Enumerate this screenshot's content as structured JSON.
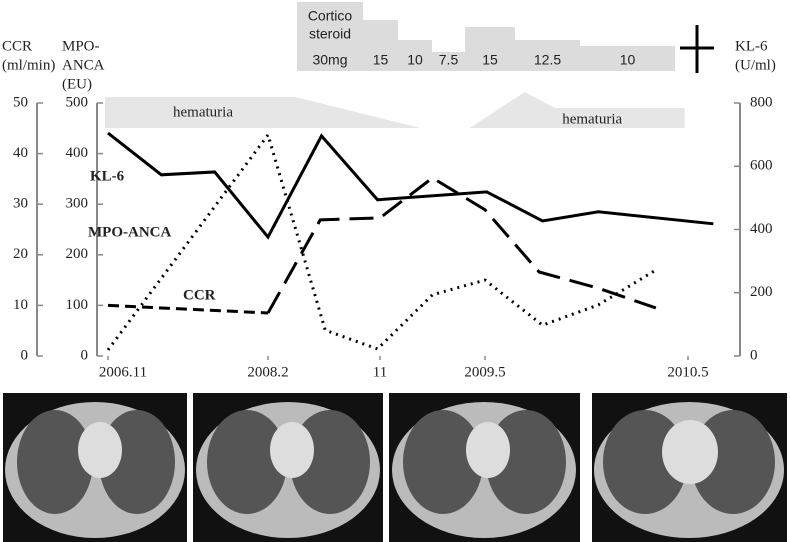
{
  "chart_data": {
    "type": "line",
    "axis_labels": {
      "ccr": [
        "CCR",
        "(ml/min)"
      ],
      "mpo": [
        "MPO-",
        "ANCA",
        "(EU)"
      ],
      "kl6": [
        "KL-6",
        "(U/ml)"
      ]
    },
    "xticks": [
      {
        "value": 0,
        "label": "2006.11"
      },
      {
        "value": 15,
        "label": "2008.2"
      },
      {
        "value": 24,
        "label": "11"
      },
      {
        "value": 30,
        "label": "2009.5"
      },
      {
        "value": 42,
        "label": "2010.5"
      }
    ],
    "ylim": [
      0,
      500
    ],
    "yticks": [
      0,
      100,
      200,
      300,
      400,
      500
    ],
    "y2lim": [
      0,
      800
    ],
    "y2ticks": [
      0,
      200,
      400,
      600,
      800
    ],
    "y3lim": [
      0,
      50
    ],
    "y3ticks": [
      0,
      10,
      20,
      30,
      40,
      50
    ],
    "series": [
      {
        "name": "KL-6",
        "color": "#000000",
        "axis": "y2",
        "dash": "solid",
        "x": [
          0,
          5,
          10,
          15,
          19.3,
          23.8,
          30.1,
          33.4,
          36.7,
          43.5
        ],
        "values": [
          705,
          573,
          582,
          376,
          696,
          494,
          519,
          427,
          456,
          418
        ]
      },
      {
        "name": "MPO-ANCA",
        "color": "#000000",
        "dash": "long",
        "x": [
          15,
          19.2,
          24,
          27,
          30,
          33.2,
          36.7,
          40.1
        ],
        "values": [
          85,
          269,
          273,
          352,
          289,
          166,
          134,
          95
        ]
      },
      {
        "name": "CCR",
        "color": "#000000",
        "axis": "y3",
        "dash": "short",
        "x": [
          0,
          15
        ],
        "values": [
          10,
          8.5
        ]
      },
      {
        "color": "#000000",
        "dash": "dotted",
        "x": [
          0,
          15,
          19.6,
          23.8,
          27,
          30,
          33.4,
          36.7,
          40.1
        ],
        "values": [
          12,
          437,
          51,
          14,
          121,
          150,
          61,
          101,
          170
        ]
      }
    ],
    "annotations": [
      {
        "text": "hematuria",
        "x": [
          0,
          26.3
        ]
      },
      {
        "text": "hematuria",
        "x": [
          29.3,
          41.8
        ]
      }
    ],
    "steroid": {
      "label": [
        "Cortico",
        "steroid"
      ],
      "doses": [
        {
          "value": 30,
          "label": "30mg"
        },
        15,
        10,
        7.5,
        15,
        12.5,
        10
      ]
    }
  }
}
